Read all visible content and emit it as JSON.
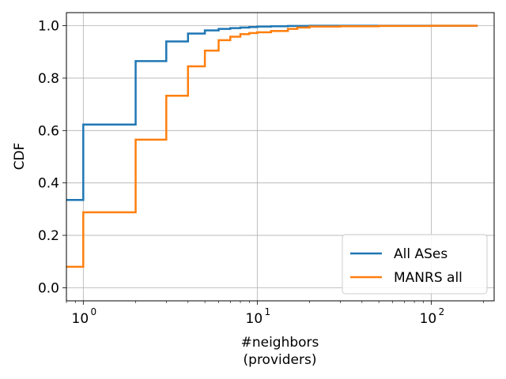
{
  "chart_data": {
    "type": "line",
    "xscale": "log",
    "xlim": [
      0.8,
      230
    ],
    "ylim": [
      -0.05,
      1.05
    ],
    "xlabel": [
      "#neighbors",
      "(providers)"
    ],
    "ylabel": "CDF",
    "grid": true,
    "legend_position": "bottom-right",
    "x_ticks": [
      {
        "value": 1,
        "base": "10",
        "exp": "0"
      },
      {
        "value": 10,
        "base": "10",
        "exp": "1"
      },
      {
        "value": 100,
        "base": "10",
        "exp": "2"
      }
    ],
    "y_ticks": [
      {
        "value": 0.0,
        "label": "0.0"
      },
      {
        "value": 0.2,
        "label": "0.2"
      },
      {
        "value": 0.4,
        "label": "0.4"
      },
      {
        "value": 0.6,
        "label": "0.6"
      },
      {
        "value": 0.8,
        "label": "0.8"
      },
      {
        "value": 1.0,
        "label": "1.0"
      }
    ],
    "series": [
      {
        "name": "All ASes",
        "color": "#1f77b4",
        "x": [
          0.8,
          1,
          2,
          3,
          4,
          5,
          6,
          7,
          8,
          9,
          10,
          12,
          15,
          20,
          30,
          50,
          100,
          185
        ],
        "y": [
          0.335,
          0.623,
          0.865,
          0.94,
          0.97,
          0.982,
          0.988,
          0.991,
          0.993,
          0.995,
          0.997,
          0.998,
          0.999,
          1.0,
          1.0,
          1.0,
          1.0,
          1.0
        ]
      },
      {
        "name": "MANRS all",
        "color": "#ff7f0e",
        "x": [
          0.8,
          1,
          2,
          3,
          4,
          5,
          6,
          7,
          8,
          9,
          10,
          12,
          15,
          17,
          20,
          30,
          50,
          100,
          185
        ],
        "y": [
          0.08,
          0.288,
          0.565,
          0.733,
          0.845,
          0.905,
          0.945,
          0.958,
          0.968,
          0.972,
          0.975,
          0.98,
          0.988,
          0.993,
          0.997,
          0.998,
          0.999,
          1.0,
          1.0
        ]
      }
    ]
  }
}
